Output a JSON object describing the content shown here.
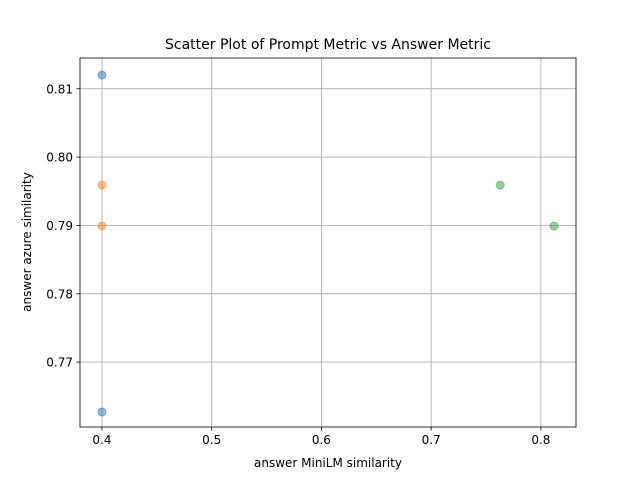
{
  "chart_data": {
    "type": "scatter",
    "title": "Scatter Plot of Prompt Metric vs Answer Metric",
    "xlabel": "answer MiniLM similarity",
    "ylabel": "answer azure similarity",
    "xlim": [
      0.38,
      0.832
    ],
    "ylim": [
      0.7605,
      0.8145
    ],
    "xticks": [
      0.4,
      0.5,
      0.6,
      0.7,
      0.8
    ],
    "xtick_labels": [
      "0.4",
      "0.5",
      "0.6",
      "0.7",
      "0.8"
    ],
    "yticks": [
      0.77,
      0.78,
      0.79,
      0.8,
      0.81
    ],
    "ytick_labels": [
      "0.77",
      "0.78",
      "0.79",
      "0.80",
      "0.81"
    ],
    "grid": true,
    "series": [
      {
        "color": "#1f77b4",
        "points": [
          {
            "x": 0.4,
            "y": 0.812
          },
          {
            "x": 0.4,
            "y": 0.7627
          }
        ]
      },
      {
        "color": "#ff7f0e",
        "points": [
          {
            "x": 0.4,
            "y": 0.7959
          },
          {
            "x": 0.4,
            "y": 0.7899
          }
        ]
      },
      {
        "color": "#2ca02c",
        "points": [
          {
            "x": 0.763,
            "y": 0.7959
          },
          {
            "x": 0.812,
            "y": 0.7899
          }
        ]
      }
    ]
  }
}
